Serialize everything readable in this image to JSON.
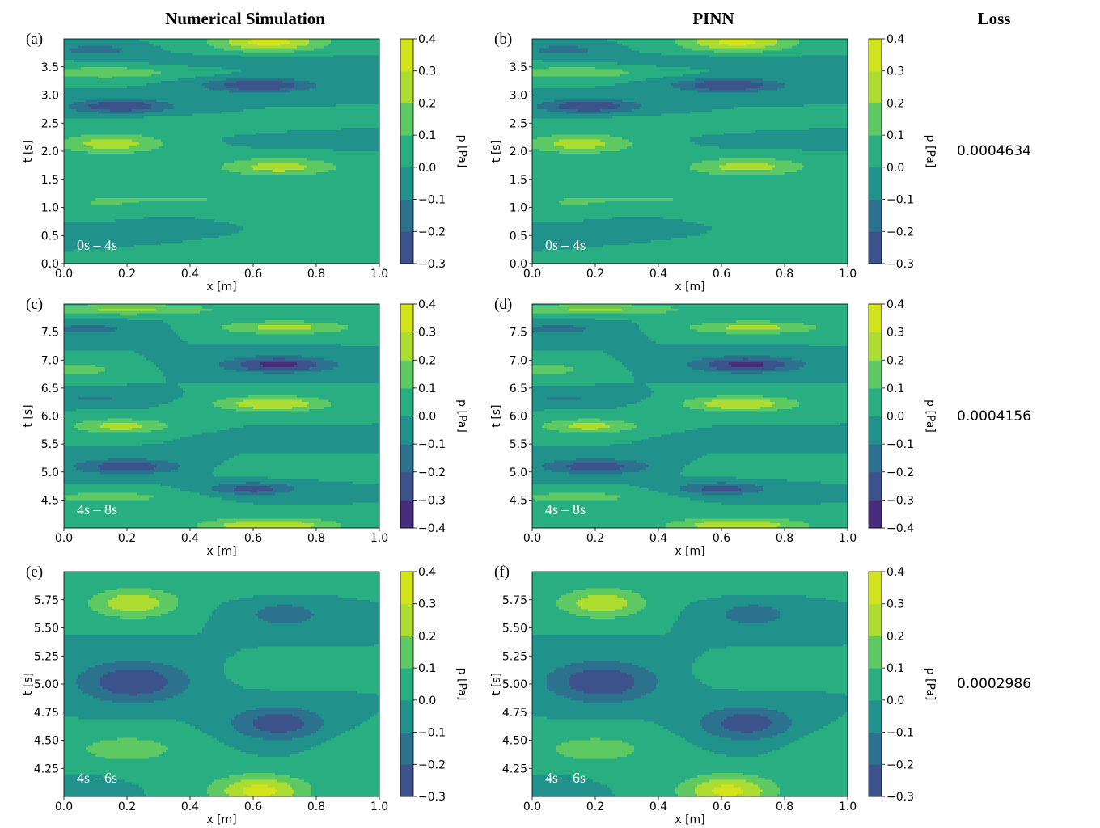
{
  "headers": {
    "numerical": "Numerical Simulation",
    "pinn": "PINN",
    "loss": "Loss"
  },
  "losses": [
    "0.0004634",
    "0.0004156",
    "0.0002986"
  ],
  "palette": [
    "#440154",
    "#472d7b",
    "#3b528b",
    "#2c728e",
    "#21918c",
    "#28ae80",
    "#5ec962",
    "#addc30",
    "#d2e21b"
  ],
  "chart_data": [
    {
      "type": "heatmap",
      "panel": "(a)",
      "row": 0,
      "column": "Numerical Simulation",
      "time_window": "0s – 4s",
      "xlabel": "x [m]",
      "ylabel": "t [s]",
      "colorbar_label": "p [Pa]",
      "xlim": [
        0.0,
        1.0
      ],
      "ylim": [
        0.0,
        4.0
      ],
      "xticks": [
        "0.0",
        "0.2",
        "0.4",
        "0.6",
        "0.8",
        "1.0"
      ],
      "yticks": [
        "0.0",
        "0.5",
        "1.0",
        "1.5",
        "2.0",
        "2.5",
        "3.0",
        "3.5"
      ],
      "colorbar_ticks": [
        "0.4",
        "0.3",
        "0.2",
        "0.1",
        "0.0",
        "−0.1",
        "−0.2",
        "−0.3"
      ],
      "colorbar_range": [
        -0.3,
        0.4
      ]
    },
    {
      "type": "heatmap",
      "panel": "(b)",
      "row": 0,
      "column": "PINN",
      "time_window": "0s – 4s",
      "xlabel": "x [m]",
      "ylabel": "t [s]",
      "colorbar_label": "p [Pa]",
      "xlim": [
        0.0,
        1.0
      ],
      "ylim": [
        0.0,
        4.0
      ],
      "xticks": [
        "0.0",
        "0.2",
        "0.4",
        "0.6",
        "0.8",
        "1.0"
      ],
      "yticks": [
        "0.0",
        "0.5",
        "1.0",
        "1.5",
        "2.0",
        "2.5",
        "3.0",
        "3.5"
      ],
      "colorbar_ticks": [
        "0.4",
        "0.3",
        "0.2",
        "0.1",
        "0.0",
        "−0.1",
        "−0.2",
        "−0.3"
      ],
      "colorbar_range": [
        -0.3,
        0.4
      ],
      "loss": "0.0004634"
    },
    {
      "type": "heatmap",
      "panel": "(c)",
      "row": 1,
      "column": "Numerical Simulation",
      "time_window": "4s – 8s",
      "xlabel": "x [m]",
      "ylabel": "t [s]",
      "colorbar_label": "p [Pa]",
      "xlim": [
        0.0,
        1.0
      ],
      "ylim": [
        4.0,
        8.0
      ],
      "xticks": [
        "0.0",
        "0.2",
        "0.4",
        "0.6",
        "0.8",
        "1.0"
      ],
      "yticks": [
        "4.5",
        "5.0",
        "5.5",
        "6.0",
        "6.5",
        "7.0",
        "7.5"
      ],
      "colorbar_ticks": [
        "0.4",
        "0.3",
        "0.2",
        "0.1",
        "0.0",
        "−0.1",
        "−0.2",
        "−0.3",
        "−0.4"
      ],
      "colorbar_range": [
        -0.4,
        0.4
      ]
    },
    {
      "type": "heatmap",
      "panel": "(d)",
      "row": 1,
      "column": "PINN",
      "time_window": "4s – 8s",
      "xlabel": "x [m]",
      "ylabel": "t [s]",
      "colorbar_label": "p [Pa]",
      "xlim": [
        0.0,
        1.0
      ],
      "ylim": [
        4.0,
        8.0
      ],
      "xticks": [
        "0.0",
        "0.2",
        "0.4",
        "0.6",
        "0.8",
        "1.0"
      ],
      "yticks": [
        "4.5",
        "5.0",
        "5.5",
        "6.0",
        "6.5",
        "7.0",
        "7.5"
      ],
      "colorbar_ticks": [
        "0.4",
        "0.3",
        "0.2",
        "0.1",
        "0.0",
        "−0.1",
        "−0.2",
        "−0.3",
        "−0.4"
      ],
      "colorbar_range": [
        -0.4,
        0.4
      ],
      "loss": "0.0004156"
    },
    {
      "type": "heatmap",
      "panel": "(e)",
      "row": 2,
      "column": "Numerical Simulation",
      "time_window": "4s – 6s",
      "xlabel": "x [m]",
      "ylabel": "t [s]",
      "colorbar_label": "p [Pa]",
      "xlim": [
        0.0,
        1.0
      ],
      "ylim": [
        4.0,
        6.0
      ],
      "xticks": [
        "0.0",
        "0.2",
        "0.4",
        "0.6",
        "0.8",
        "1.0"
      ],
      "yticks": [
        "4.25",
        "4.50",
        "4.75",
        "5.00",
        "5.25",
        "5.50",
        "5.75"
      ],
      "colorbar_ticks": [
        "0.4",
        "0.3",
        "0.2",
        "0.1",
        "0.0",
        "−0.1",
        "−0.2",
        "−0.3"
      ],
      "colorbar_range": [
        -0.3,
        0.4
      ]
    },
    {
      "type": "heatmap",
      "panel": "(f)",
      "row": 2,
      "column": "PINN",
      "time_window": "4s – 6s",
      "xlabel": "x [m]",
      "ylabel": "t [s]",
      "colorbar_label": "p [Pa]",
      "xlim": [
        0.0,
        1.0
      ],
      "ylim": [
        4.0,
        6.0
      ],
      "xticks": [
        "0.0",
        "0.2",
        "0.4",
        "0.6",
        "0.8",
        "1.0"
      ],
      "yticks": [
        "4.25",
        "4.50",
        "4.75",
        "5.00",
        "5.25",
        "5.50",
        "5.75"
      ],
      "colorbar_ticks": [
        "0.4",
        "0.3",
        "0.2",
        "0.1",
        "0.0",
        "−0.1",
        "−0.2",
        "−0.3"
      ],
      "colorbar_range": [
        -0.3,
        0.4
      ],
      "loss": "0.0002986"
    }
  ]
}
